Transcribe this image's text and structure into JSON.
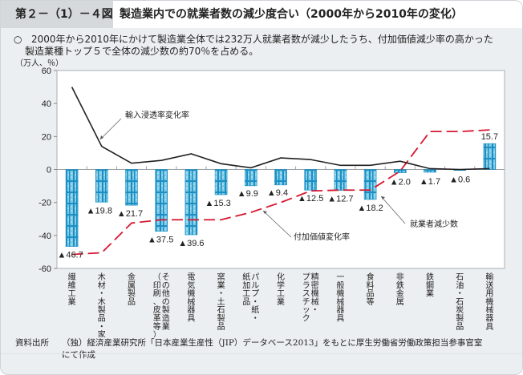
{
  "header": {
    "figure_number": "第２－（1）－４図",
    "title": "製造業内での就業者数の減少度合い（2000年から2010年の変化）"
  },
  "lead": {
    "bullet": "○",
    "line1": "2000年から2010年にかけて製造業全体では232万人就業者数が減少したうち、付加価値減少率の高かった",
    "line2": "製造業種トップ５で全体の減少数の約70％を占める。"
  },
  "unit_label": "（万人、％）",
  "source": {
    "label": "資料出所",
    "line1": "（独）経済産業研究所「日本産業生産性（JIP）データベース2013」をもとに厚生労働省労働政策担当参事官室",
    "line2": "にて作成"
  },
  "chart_data": {
    "type": "bar",
    "title": "製造業内での就業者数の減少度合い（2000年から2010年の変化）",
    "xlabel": "",
    "ylabel": "（万人、％）",
    "ylim": [
      -60,
      60
    ],
    "yticks": [
      60,
      40,
      20,
      0,
      -20,
      -40,
      -60
    ],
    "ytick_labels": [
      "60",
      "40",
      "20",
      "0",
      "-20",
      "-40",
      "-60"
    ],
    "grid": false,
    "categories": [
      [
        "繊維工業"
      ],
      [
        "木材・木製品・家具"
      ],
      [
        "金属製品"
      ],
      [
        "その他の製造業",
        "（印刷、皮革等）"
      ],
      [
        "電気機械器具"
      ],
      [
        "窯業・土石製品"
      ],
      [
        "パルプ・紙・",
        "紙加工品"
      ],
      [
        "化学工業"
      ],
      [
        "精密機械・",
        "プラスチック"
      ],
      [
        "一般機械器具"
      ],
      [
        "食料品等"
      ],
      [
        "非鉄金属"
      ],
      [
        "鉄鋼業"
      ],
      [
        "石油・石炭製品"
      ],
      [
        "輸送用機械器具"
      ]
    ],
    "series": [
      {
        "name": "就業者減少数",
        "type": "bar",
        "unit": "万人",
        "color": "#2aa2d2",
        "values": [
          -46.7,
          -19.8,
          -21.7,
          -37.5,
          -39.6,
          -15.3,
          -9.9,
          -9.4,
          -12.5,
          -12.7,
          -18.2,
          -2.0,
          -1.7,
          -0.6,
          15.7
        ],
        "data_labels": [
          "▲46.7",
          "▲19.8",
          "▲21.7",
          "▲37.5",
          "▲39.6",
          "▲15.3",
          "▲9.9",
          "▲9.4",
          "▲12.5",
          "▲12.7",
          "▲18.2",
          "▲2.0",
          "▲1.7",
          "▲0.6",
          "15.7"
        ]
      },
      {
        "name": "輸入浸透率変化率",
        "type": "line",
        "unit": "%",
        "color": "#231f20",
        "values": [
          50,
          14,
          3.8,
          5.5,
          9.5,
          3.5,
          1,
          7,
          6,
          2.5,
          2.5,
          5,
          0.5,
          0,
          0.5
        ]
      },
      {
        "name": "付加価値変化率",
        "type": "line",
        "style": "dashed",
        "unit": "%",
        "color": "#d7172f",
        "values": [
          -51.5,
          -50.5,
          -32.5,
          -30.5,
          -30.5,
          -30.5,
          -26,
          -20,
          -13,
          -12.5,
          -12.5,
          -1,
          23,
          23,
          24
        ]
      }
    ],
    "annotations": [
      {
        "text": "輸入浸透率変化率",
        "target_series": "輸入浸透率変化率",
        "target_category": 1
      },
      {
        "text": "付加価値変化率",
        "target_series": "付加価値変化率",
        "target_category": 7
      },
      {
        "text": "就業者減少数",
        "target_series": "就業者減少数",
        "target_category": 10
      }
    ]
  }
}
